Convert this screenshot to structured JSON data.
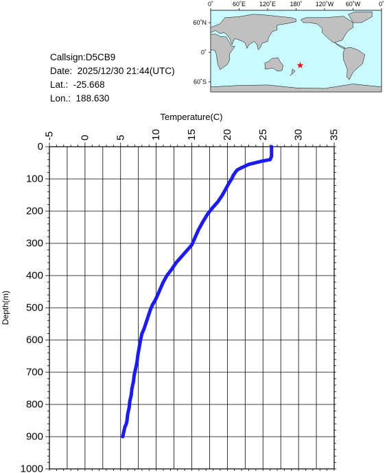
{
  "station": {
    "callsign_label": "Callsign:",
    "callsign": "D5CB9",
    "date_label": "Date:",
    "date": "2025/12/30 21:44(UTC)",
    "lat_label": "Lat.:",
    "lat": "-25.668",
    "lon_label": "Lon.:",
    "lon": "188.630"
  },
  "map": {
    "lon_labels": [
      "0˚",
      "60˚E",
      "120˚E",
      "180˚",
      "120˚W",
      "60˚W",
      "0˚"
    ],
    "lat_labels": [
      "60˚N",
      "0˚",
      "60˚S"
    ],
    "ocean_color": "#c8faff",
    "land_color": "#c0c0c0",
    "marker_color": "#ff0000",
    "marker": {
      "lon": 188.63,
      "lat": -25.668
    }
  },
  "chart_data": {
    "type": "line",
    "xlabel": "Temperature(C)",
    "ylabel": "Depth(m)",
    "xlim": [
      -5,
      35
    ],
    "ylim": [
      0,
      1000
    ],
    "y_inverted": true,
    "x_ticks": [
      "-5",
      "0",
      "5",
      "10",
      "15",
      "20",
      "25",
      "30",
      "35"
    ],
    "y_ticks": [
      "0",
      "100",
      "200",
      "300",
      "400",
      "500",
      "600",
      "700",
      "800",
      "900",
      "1000"
    ],
    "grid": true,
    "line_color": "#1a1aff",
    "series": [
      {
        "x": [
          26.2,
          26.2,
          26.0,
          24.8,
          23.0,
          22.0,
          21.4,
          21.1,
          20.8,
          20.6,
          20.3,
          19.8,
          19.3,
          18.7,
          17.9,
          17.2,
          16.5,
          15.9,
          15.4,
          15.0,
          14.4,
          13.6,
          12.8,
          12.2,
          11.5,
          11.0,
          10.4,
          9.9,
          9.5,
          9.2,
          8.9,
          8.6,
          8.3,
          8.0,
          7.8,
          7.6,
          7.4,
          7.3,
          7.1,
          6.9,
          6.8,
          6.6,
          6.5,
          6.3,
          6.2,
          6.0,
          5.9,
          5.8,
          5.6,
          5.5,
          5.4,
          5.3
        ],
        "y": [
          0,
          30,
          40,
          45,
          55,
          65,
          72,
          80,
          90,
          100,
          110,
          130,
          150,
          170,
          190,
          210,
          235,
          260,
          285,
          305,
          320,
          340,
          360,
          380,
          400,
          420,
          450,
          475,
          490,
          505,
          525,
          545,
          565,
          580,
          600,
          625,
          650,
          670,
          690,
          710,
          730,
          750,
          770,
          790,
          810,
          830,
          850,
          860,
          870,
          880,
          890,
          900
        ]
      }
    ]
  }
}
